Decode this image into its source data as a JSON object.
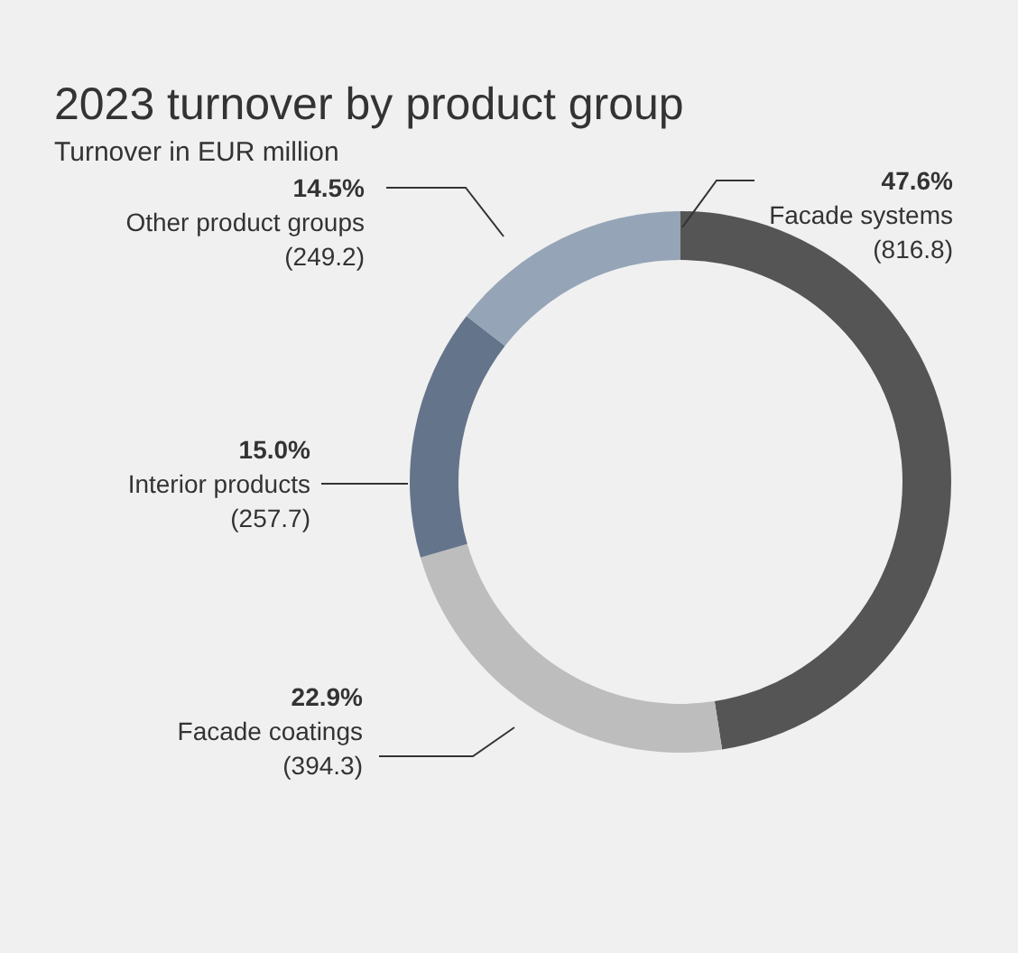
{
  "chart_data": {
    "type": "donut",
    "title": "2023 turnover by product group",
    "subtitle": "Turnover in EUR million",
    "categories": [
      "Facade systems",
      "Facade coatings",
      "Interior products",
      "Other product groups"
    ],
    "values": [
      816.8,
      394.3,
      257.7,
      249.2
    ],
    "colors": [
      "#555555",
      "#bdbdbd",
      "#64748b",
      "#95a4b7"
    ],
    "value_labels": [
      "(816.8)",
      "(394.3)",
      "(257.7)",
      "(249.2)"
    ],
    "annotations": [
      "47.6%",
      "22.9%",
      "15.0%",
      "14.5%"
    ],
    "legend": false
  }
}
